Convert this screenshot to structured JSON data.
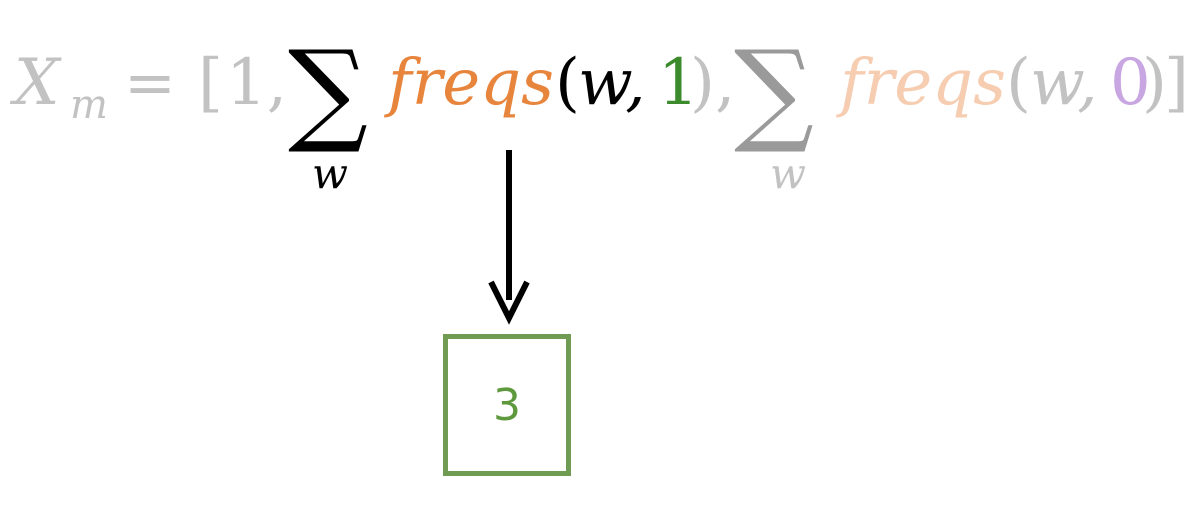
{
  "formula": {
    "lhs": "X",
    "lhs_subscript": "m",
    "equals": "=",
    "open_bracket": "[",
    "first_entry": "1,",
    "sum_symbol": "∑",
    "sum_index": "w",
    "freqs_label": "freqs",
    "open_paren": "(",
    "arg_word": "w,",
    "class_positive": "1",
    "class_negative": "0",
    "close_paren_comma": "),",
    "close_paren": ")",
    "close_bracket": "]"
  },
  "result": {
    "value": "3"
  },
  "colors": {
    "faded_gray": "#c2c2c2",
    "sum_faded_gray": "#9a9a9a",
    "black": "#000000",
    "freqs_orange": "#e8853d",
    "freqs_faded_orange": "#f6cdb0",
    "positive_green": "#3b8a2c",
    "negative_purple": "#c8a6e2",
    "box_green": "#6f9b52"
  }
}
